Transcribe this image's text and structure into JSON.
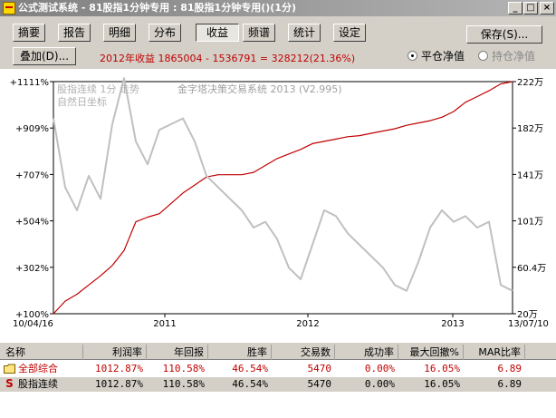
{
  "window": {
    "title": "公式测试系统 - 81股指1分钟专用 : 81股指1分钟专用()(1分)",
    "minimize": "_",
    "maximize": "□",
    "close": "×"
  },
  "tabs": [
    {
      "label": "摘要",
      "active": false
    },
    {
      "label": "报告",
      "active": false
    },
    {
      "label": "明细",
      "active": false
    },
    {
      "label": "分布",
      "active": false
    },
    {
      "label": "收益",
      "active": true
    },
    {
      "label": "频谱",
      "active": false
    },
    {
      "label": "统计",
      "active": false
    },
    {
      "label": "设定",
      "active": false
    }
  ],
  "save_button": "保存(S)...",
  "overlay_button": "叠加(D)...",
  "summary_text": "2012年收益 1865004 - 1536791 = 328212(21.36%)",
  "radios": {
    "close_equity": {
      "label": "平仓净值",
      "checked": true
    },
    "hold_equity": {
      "label": "持仓净值",
      "checked": false
    }
  },
  "chart_data": {
    "type": "line",
    "annotations": [
      "股指连续 1分 走势",
      "自然日坐标",
      "金字塔决策交易系统 2013 (V2.995)"
    ],
    "left_axis_ticks": [
      "+1111%",
      "+909%",
      "+707%",
      "+504%",
      "+302%",
      "+100%"
    ],
    "right_axis_ticks": [
      "222万",
      "182万",
      "141万",
      "101万",
      "60.4万",
      "20万"
    ],
    "x_tick_labels": [
      "10/04/16",
      "2011",
      "2012",
      "2013",
      "13/07/10"
    ],
    "left_ylim": [
      100,
      1111
    ],
    "right_ylim": [
      20,
      222
    ],
    "colors": {
      "equity": "#c00000",
      "price": "#c0c0c0"
    },
    "series": [
      {
        "style": "equity",
        "x": [
          "10/04/16",
          "10/05",
          "10/06",
          "10/07",
          "10/08",
          "10/09",
          "10/10",
          "10/11",
          "10/12",
          "2011/01",
          "11/02",
          "11/03",
          "11/04",
          "11/05",
          "11/06",
          "11/07",
          "11/08",
          "11/09",
          "11/10",
          "11/11",
          "11/12",
          "2012/01",
          "12/02",
          "12/03",
          "12/04",
          "12/05",
          "12/06",
          "12/07",
          "12/08",
          "12/09",
          "12/10",
          "12/11",
          "12/12",
          "2013/01",
          "13/02",
          "13/03",
          "13/04",
          "13/05",
          "13/06",
          "13/07/10"
        ],
        "values": [
          20,
          31,
          37,
          45,
          53,
          62,
          75,
          100,
          104,
          107,
          116,
          125,
          132,
          139,
          141,
          141,
          141,
          143,
          149,
          155,
          159,
          163,
          168,
          170,
          172,
          174,
          175,
          177,
          179,
          181,
          184,
          186,
          188,
          191,
          196,
          204,
          209,
          214,
          220,
          222
        ]
      },
      {
        "style": "price",
        "x": [
          "10/04/16",
          "10/05",
          "10/06",
          "10/07",
          "10/08",
          "10/09",
          "10/10",
          "10/11",
          "10/12",
          "2011/01",
          "11/02",
          "11/03",
          "11/04",
          "11/05",
          "11/06",
          "11/07",
          "11/08",
          "11/09",
          "11/10",
          "11/11",
          "11/12",
          "2012/01",
          "12/02",
          "12/03",
          "12/04",
          "12/05",
          "12/06",
          "12/07",
          "12/08",
          "12/09",
          "12/10",
          "12/11",
          "12/12",
          "2013/01",
          "13/02",
          "13/03",
          "13/04",
          "13/05",
          "13/06",
          "13/07/10"
        ],
        "values": [
          190,
          130,
          110,
          140,
          120,
          185,
          225,
          170,
          150,
          180,
          185,
          190,
          170,
          140,
          130,
          120,
          110,
          95,
          100,
          85,
          60,
          50,
          80,
          110,
          105,
          90,
          80,
          70,
          60,
          45,
          40,
          65,
          95,
          110,
          100,
          105,
          95,
          100,
          45,
          40
        ]
      }
    ]
  },
  "table": {
    "columns": [
      "名称",
      "利润率",
      "年回报",
      "胜率",
      "交易数",
      "成功率",
      "最大回撤%",
      "MAR比率"
    ],
    "rows": [
      {
        "icon": "folder-icon",
        "cells": [
          "全部综合",
          "1012.87%",
          "110.58%",
          "46.54%",
          "5470",
          "0.00%",
          "16.05%",
          "6.89"
        ]
      },
      {
        "icon": "s-icon",
        "icon_text": "S",
        "cells": [
          "股指连续",
          "1012.87%",
          "110.58%",
          "46.54%",
          "5470",
          "0.00%",
          "16.05%",
          "6.89"
        ]
      }
    ]
  }
}
